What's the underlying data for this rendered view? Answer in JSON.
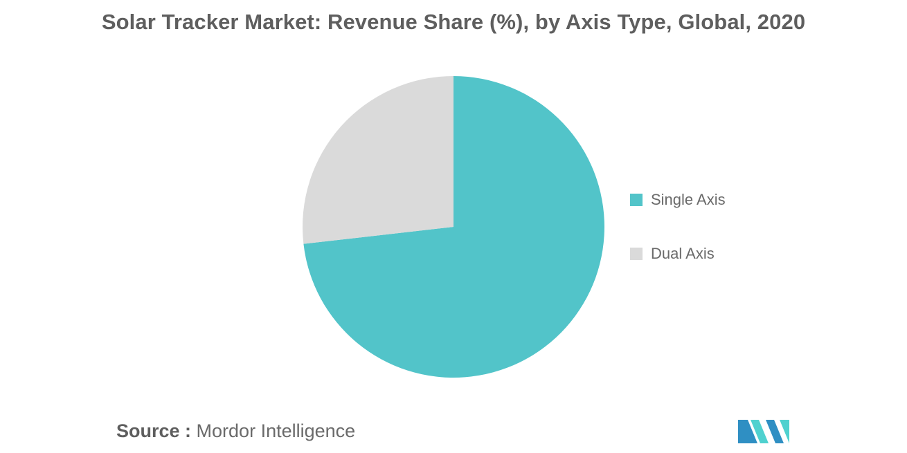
{
  "chart_data": {
    "type": "pie",
    "title": "Solar Tracker Market: Revenue Share (%), by Axis Type, Global, 2020",
    "categories": [
      "Single Axis",
      "Dual Axis"
    ],
    "values": [
      73.2,
      26.8
    ],
    "colors": [
      "#52c4c9",
      "#dadada"
    ],
    "legend_position": "right",
    "start_angle": "12 o'clock",
    "direction": "clockwise"
  },
  "source": {
    "label": "Source :",
    "text": "Mordor Intelligence"
  },
  "logo": {
    "icon": "mordor-intelligence-logo-icon",
    "colors": [
      "#2f8fc3",
      "#4fd1cf"
    ]
  }
}
